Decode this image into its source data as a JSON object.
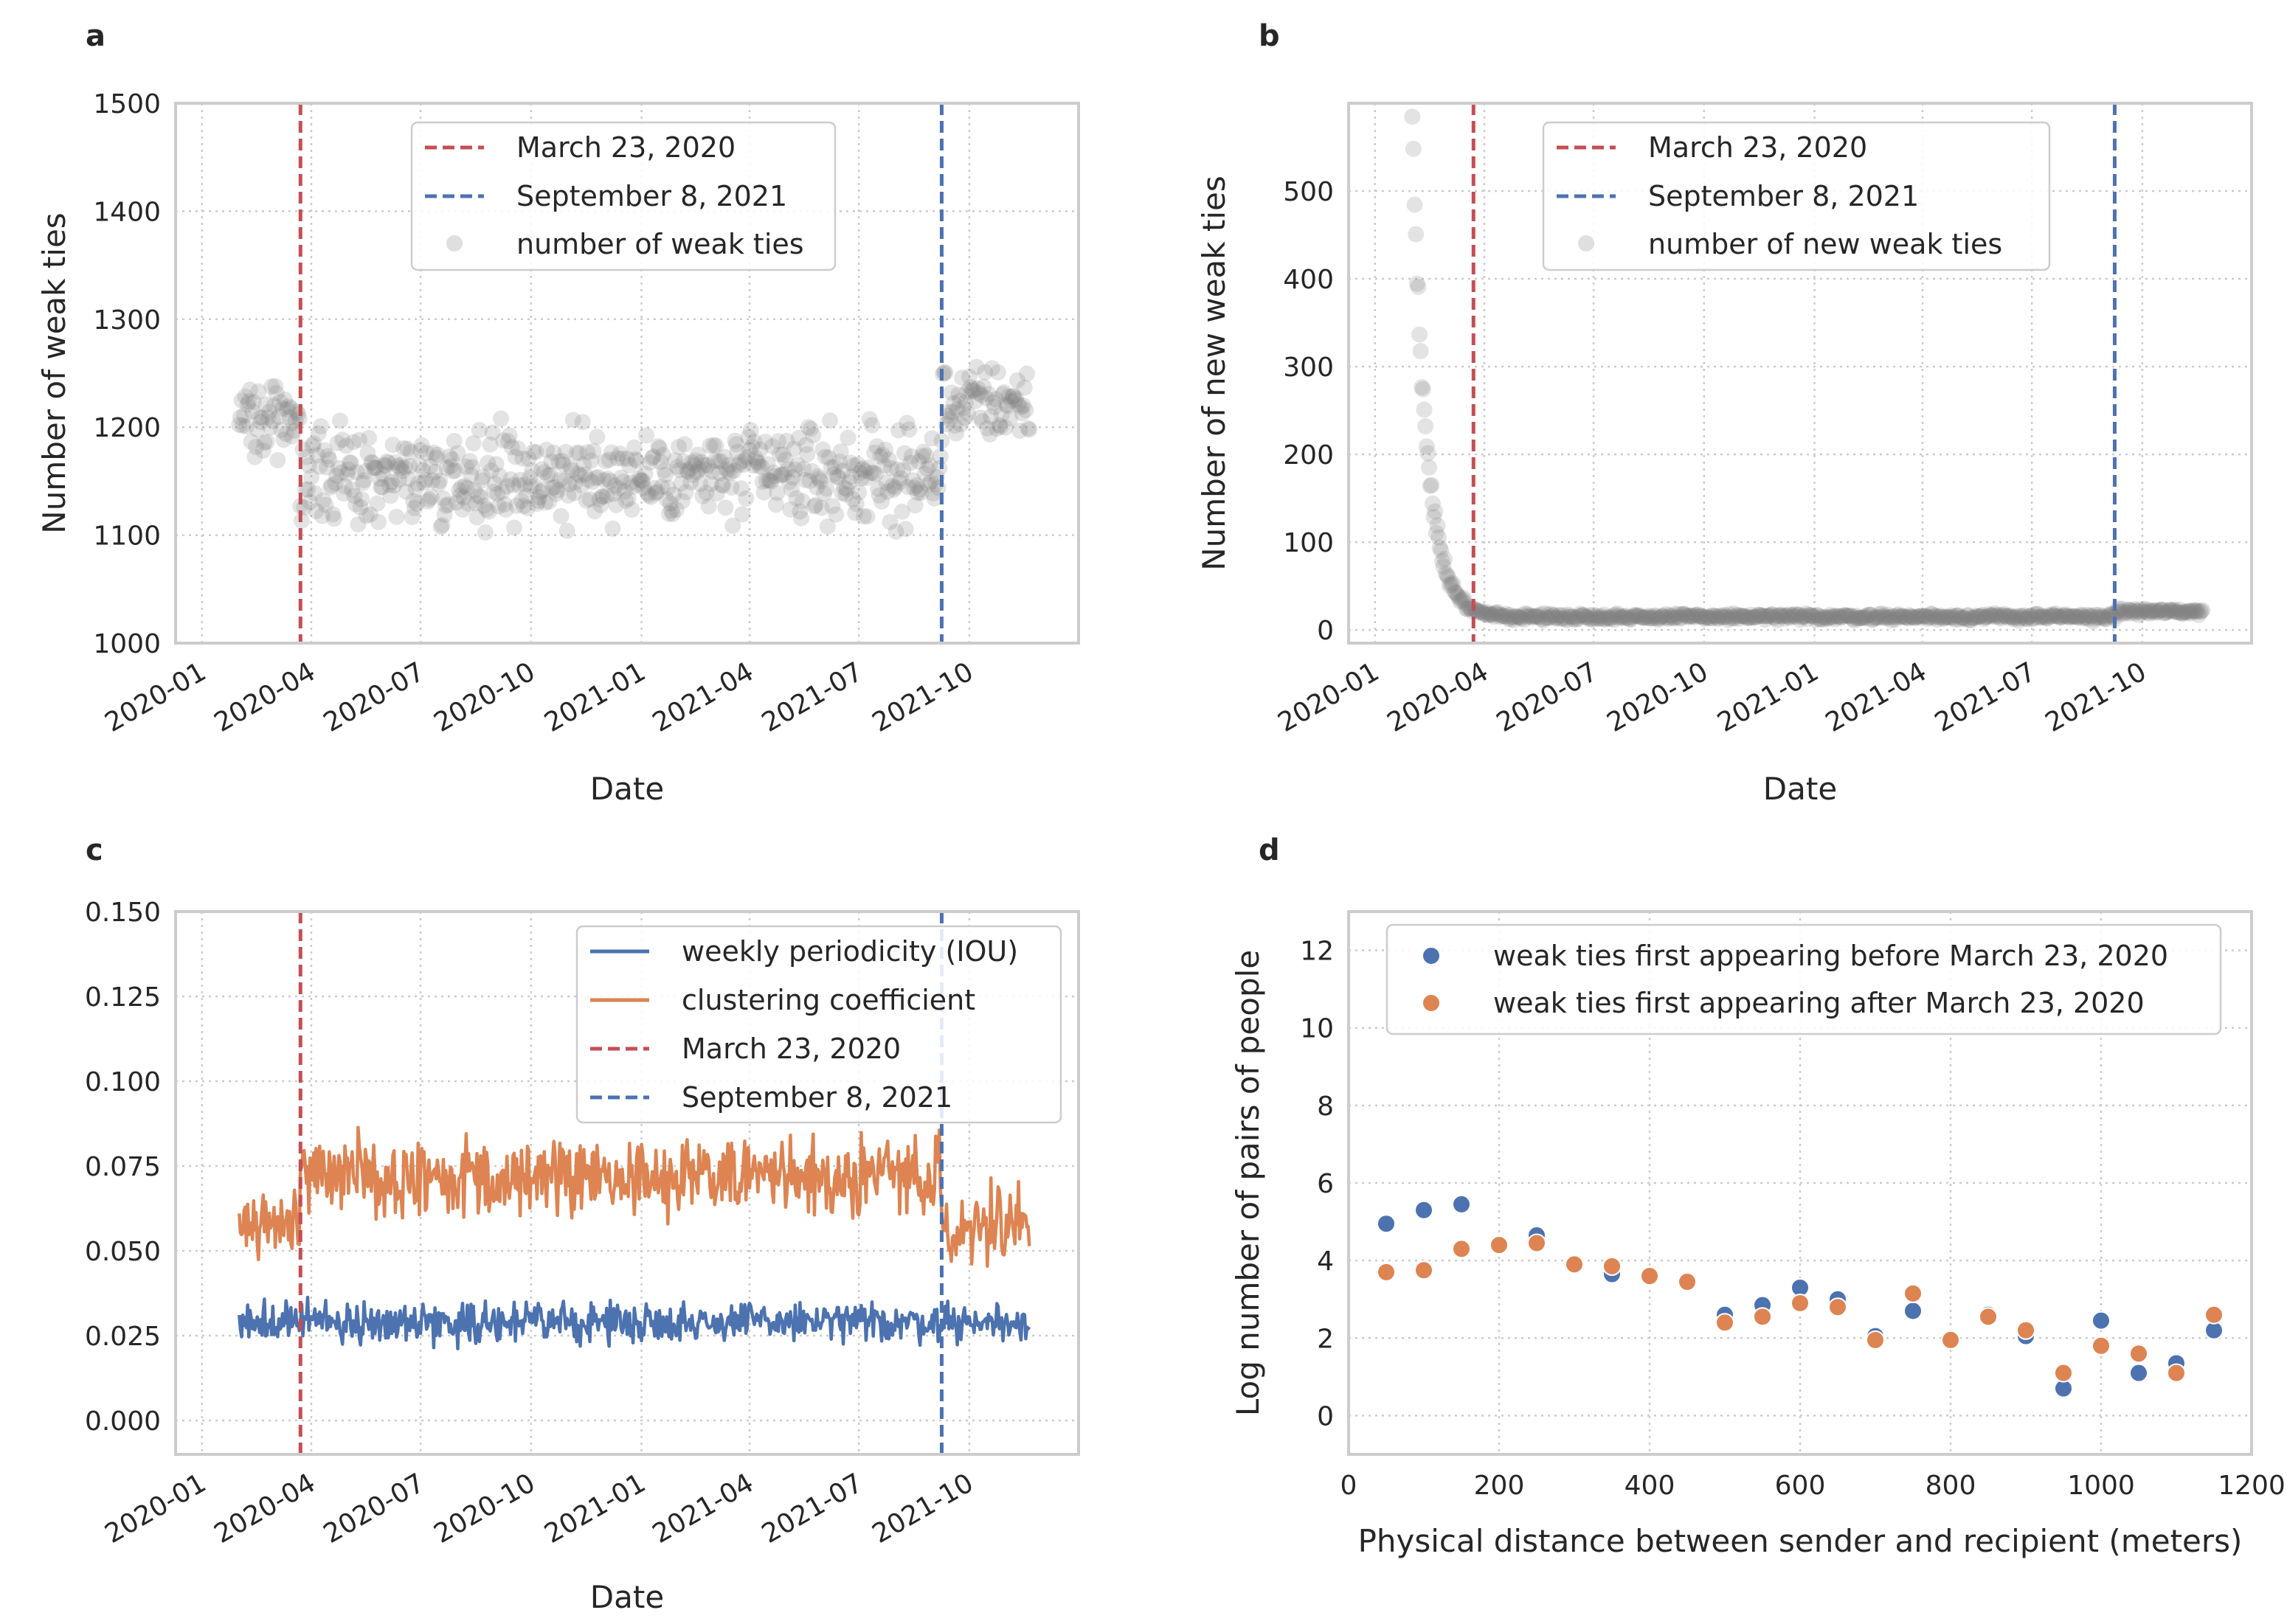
{
  "colors": {
    "red": "#c44e52",
    "blue": "#4c72b0",
    "orange": "#dd8452",
    "gray": "#808080",
    "frame": "#cccccc"
  },
  "chart_data": [
    {
      "panel": "a",
      "type": "scatter",
      "xlabel": "Date",
      "ylabel": "Number of weak ties",
      "ylim": [
        1000,
        1500
      ],
      "yticks": [
        "1000",
        "1100",
        "1200",
        "1300",
        "1400",
        "1500"
      ],
      "xticks": [
        "2020-01",
        "2020-04",
        "2020-07",
        "2020-10",
        "2021-01",
        "2021-04",
        "2021-07",
        "2021-10"
      ],
      "vlines": [
        {
          "label": "March 23, 2020",
          "date": "2020-03-23",
          "color": "red"
        },
        {
          "label": "September 8, 2021",
          "date": "2021-09-08",
          "color": "blue"
        }
      ],
      "series": [
        {
          "name": "number of weak ties",
          "start": "2020-02-01",
          "end": "2021-11-20",
          "segments": [
            {
              "from": "2020-02-01",
              "to": "2020-03-23",
              "mean": 1213,
              "spread": 25
            },
            {
              "from": "2020-03-23",
              "to": "2021-09-08",
              "mean": 1155,
              "spread": 30
            },
            {
              "from": "2021-09-08",
              "to": "2021-11-20",
              "mean": 1222,
              "spread": 25
            }
          ]
        }
      ],
      "legend": [
        "March 23, 2020",
        "September 8, 2021",
        "number of weak ties"
      ]
    },
    {
      "panel": "b",
      "type": "scatter",
      "xlabel": "Date",
      "ylabel": "Number of new weak ties",
      "ylim": [
        -15,
        600
      ],
      "yticks": [
        "0",
        "100",
        "200",
        "300",
        "400",
        "500"
      ],
      "xticks": [
        "2020-01",
        "2020-04",
        "2020-07",
        "2020-10",
        "2021-01",
        "2021-04",
        "2021-07",
        "2021-10"
      ],
      "vlines": [
        {
          "label": "March 23, 2020",
          "date": "2020-03-23",
          "color": "red"
        },
        {
          "label": "September 8, 2021",
          "date": "2021-09-08",
          "color": "blue"
        }
      ],
      "series": [
        {
          "name": "number of new weak ties",
          "start": "2020-02-01",
          "end": "2021-11-20",
          "peak": 570,
          "floor": 15,
          "decay_days": 12
        }
      ],
      "legend": [
        "March 23, 2020",
        "September 8, 2021",
        "number of new weak ties"
      ]
    },
    {
      "panel": "c",
      "type": "line",
      "xlabel": "Date",
      "ylabel": "",
      "ylim": [
        -0.01,
        0.15
      ],
      "yticks": [
        "0.000",
        "0.025",
        "0.050",
        "0.075",
        "0.100",
        "0.125",
        "0.150"
      ],
      "xticks": [
        "2020-01",
        "2020-04",
        "2020-07",
        "2020-10",
        "2021-01",
        "2021-04",
        "2021-07",
        "2021-10"
      ],
      "vlines": [
        {
          "label": "March 23, 2020",
          "date": "2020-03-23",
          "color": "red"
        },
        {
          "label": "September 8, 2021",
          "date": "2021-09-08",
          "color": "blue"
        }
      ],
      "series": [
        {
          "name": "weekly periodicity (IOU)",
          "color": "blue",
          "start": "2020-02-01",
          "end": "2021-11-20",
          "mean": 0.029,
          "spread": 0.004
        },
        {
          "name": "clustering coefficient",
          "color": "orange",
          "start": "2020-02-01",
          "end": "2021-11-20",
          "segments": [
            {
              "from": "2020-02-01",
              "to": "2020-03-23",
              "mean": 0.058,
              "spread": 0.007
            },
            {
              "from": "2020-03-23",
              "to": "2021-09-08",
              "mean": 0.072,
              "spread": 0.008
            },
            {
              "from": "2021-09-08",
              "to": "2021-11-20",
              "mean": 0.058,
              "spread": 0.007
            }
          ]
        }
      ],
      "legend": [
        "weekly periodicity (IOU)",
        "clustering coefficient",
        "March 23, 2020",
        "September 8, 2021"
      ]
    },
    {
      "panel": "d",
      "type": "scatter",
      "xlabel": "Physical distance between sender and recipient (meters)",
      "ylabel": "Log number of pairs of people",
      "xlim": [
        0,
        1200
      ],
      "ylim": [
        -1,
        13
      ],
      "xticks": [
        "0",
        "200",
        "400",
        "600",
        "800",
        "1000",
        "1200"
      ],
      "yticks": [
        "0",
        "2",
        "4",
        "6",
        "8",
        "10",
        "12"
      ],
      "x": [
        50,
        100,
        150,
        200,
        250,
        300,
        350,
        400,
        450,
        500,
        550,
        600,
        650,
        700,
        750,
        800,
        850,
        900,
        950,
        1000,
        1050,
        1100,
        1150
      ],
      "series": [
        {
          "name": "weak ties first appearing before March 23, 2020",
          "color": "blue",
          "values": [
            4.95,
            5.3,
            5.45,
            4.4,
            4.65,
            3.9,
            3.65,
            3.6,
            3.45,
            2.6,
            2.85,
            3.3,
            3.0,
            2.05,
            2.7,
            1.95,
            2.6,
            2.05,
            0.7,
            2.45,
            1.1,
            1.35,
            2.2
          ]
        },
        {
          "name": "weak ties first appearing after March 23, 2020",
          "color": "orange",
          "values": [
            3.7,
            3.75,
            4.3,
            4.4,
            4.45,
            3.9,
            3.85,
            3.6,
            3.45,
            2.4,
            2.55,
            2.9,
            2.8,
            1.95,
            3.15,
            1.95,
            2.55,
            2.2,
            1.1,
            1.8,
            1.6,
            1.1,
            2.6
          ]
        }
      ],
      "legend": [
        "weak ties first appearing before March 23, 2020",
        "weak ties first appearing after March 23, 2020"
      ]
    }
  ]
}
